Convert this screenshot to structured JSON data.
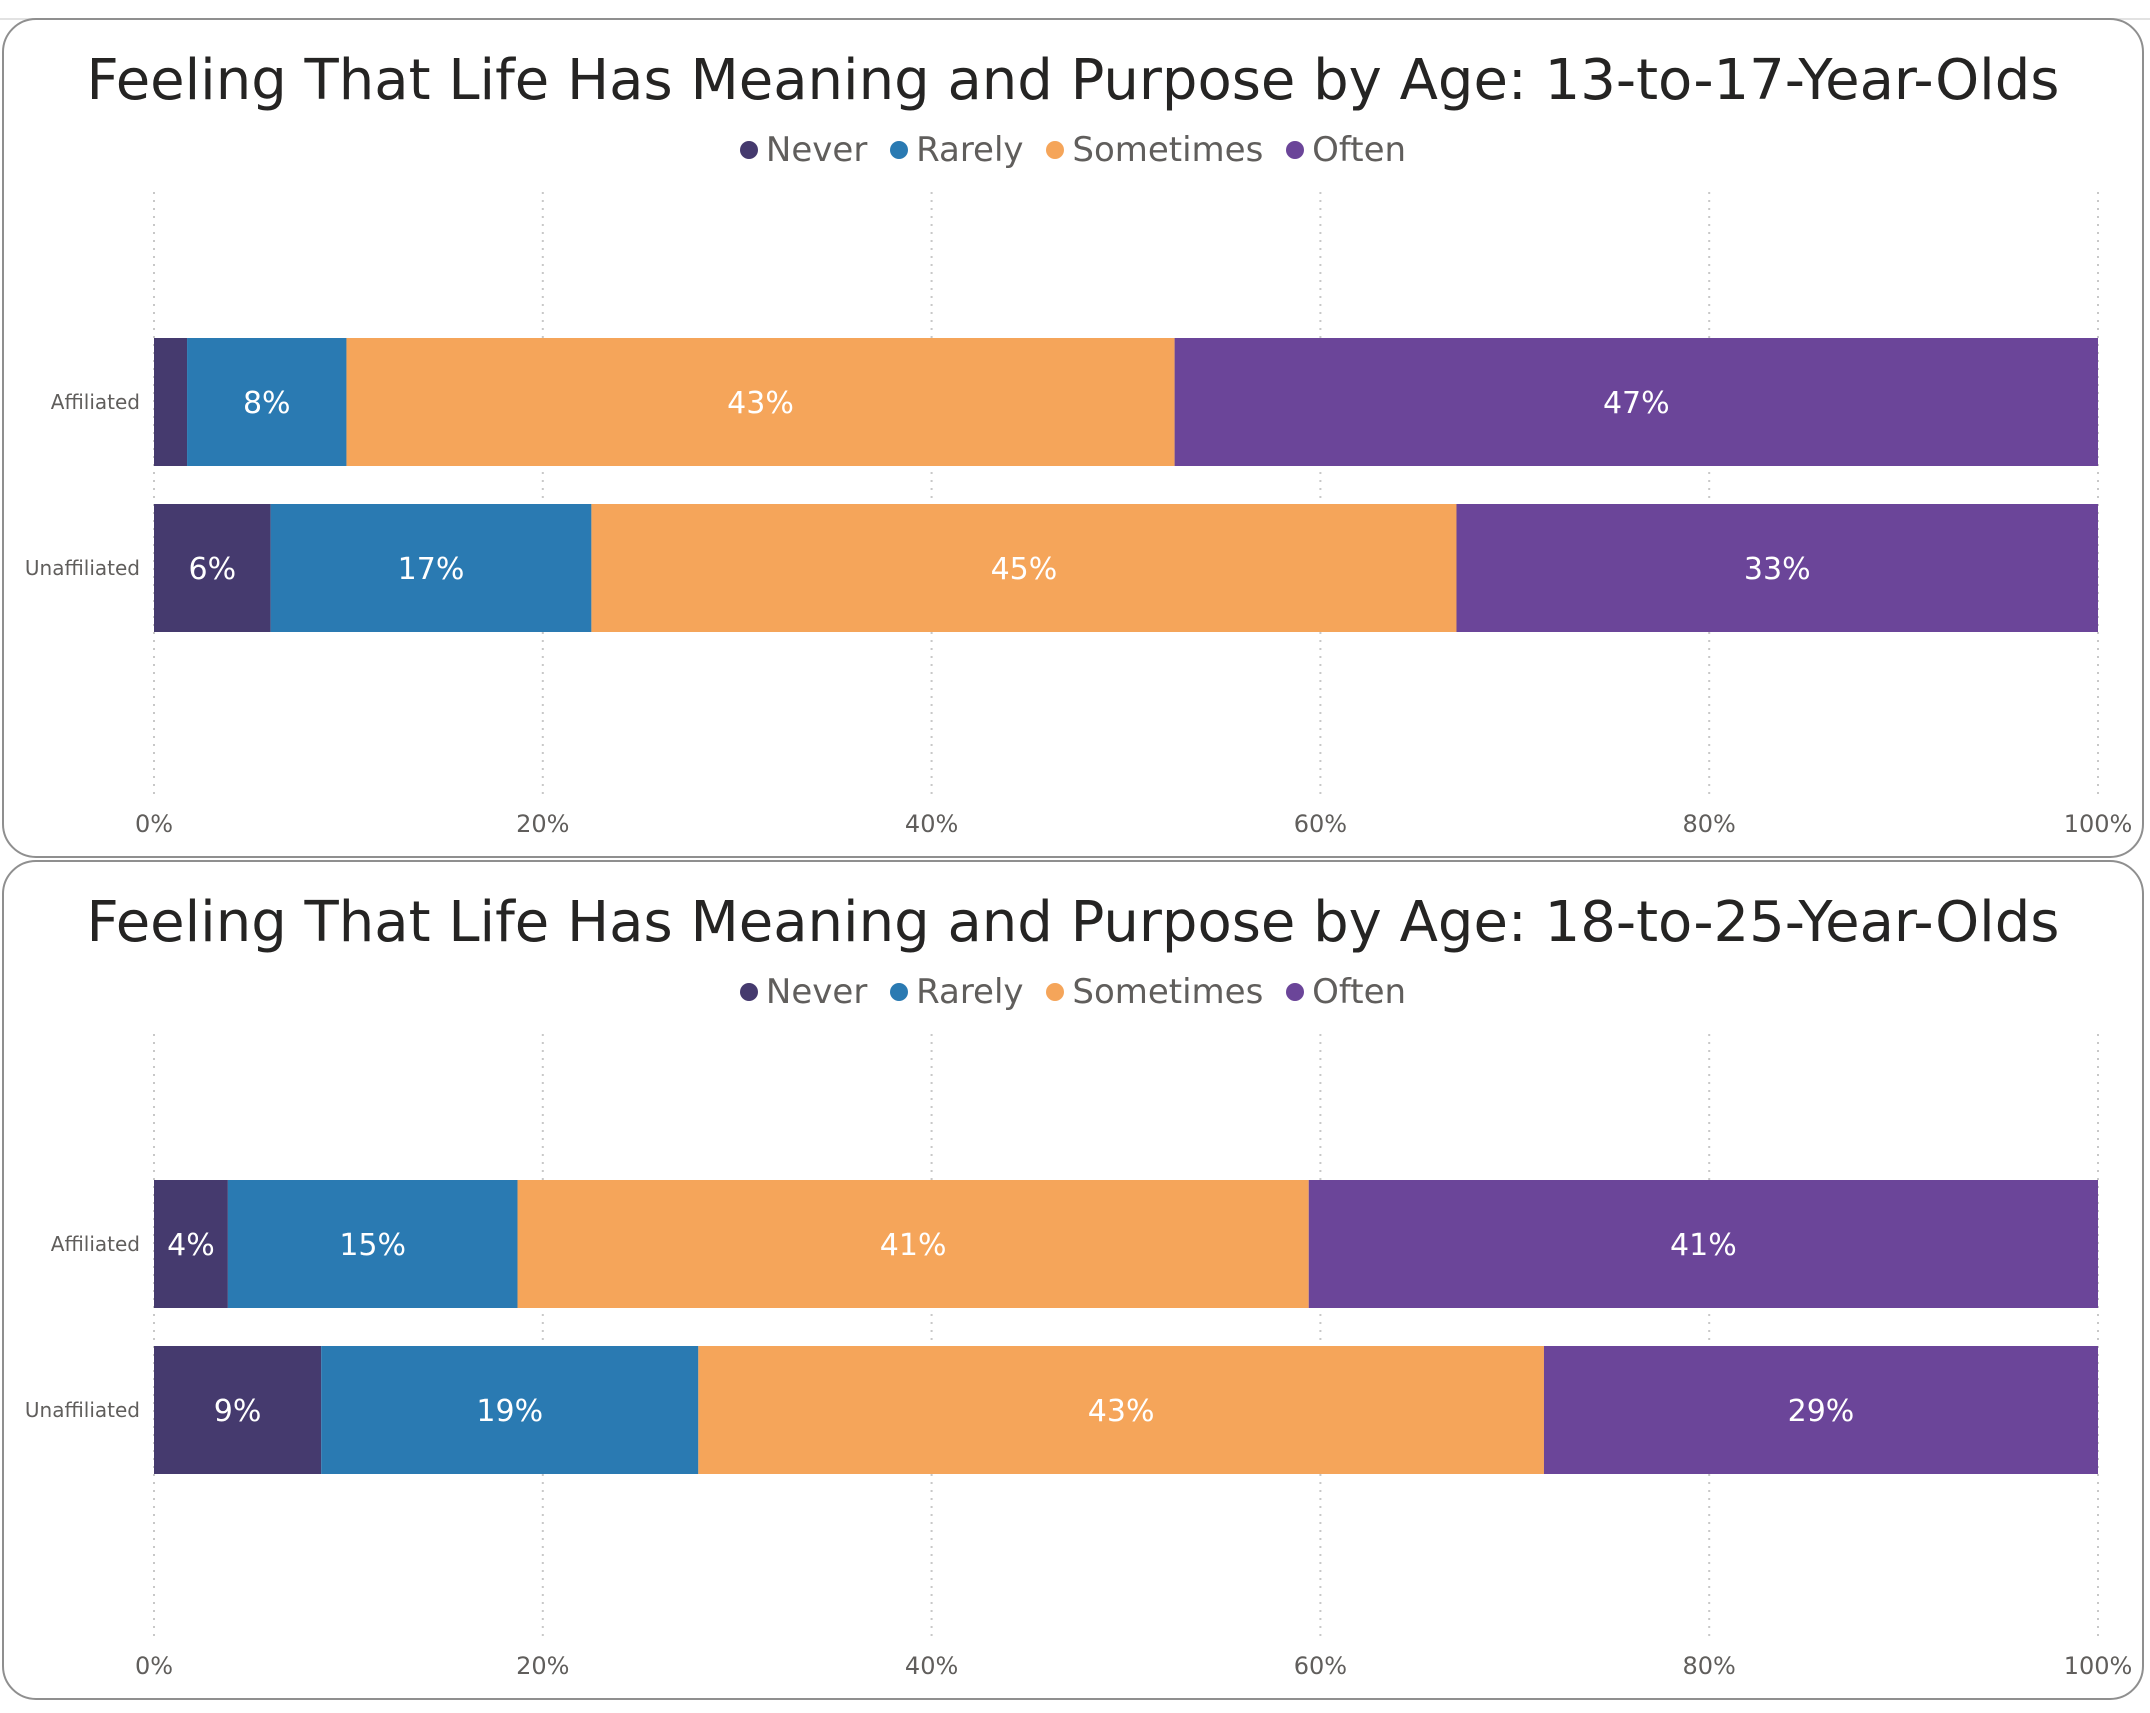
{
  "chart_data": [
    {
      "type": "bar",
      "orientation": "horizontal",
      "stacked": "100%",
      "title": "Feeling That Life Has Meaning and Purpose by Age: 13-to-17-Year-Olds",
      "categories": [
        "Affiliated",
        "Unaffiliated"
      ],
      "legend": [
        "Never",
        "Rarely",
        "Sometimes",
        "Often"
      ],
      "series": [
        {
          "name": "Never",
          "color": "#453a6e",
          "values": [
            1.7,
            6
          ],
          "labels": [
            "",
            "6%"
          ]
        },
        {
          "name": "Rarely",
          "color": "#2a7ab2",
          "values": [
            8.2,
            16.5
          ],
          "labels": [
            "8%",
            "17%"
          ]
        },
        {
          "name": "Sometimes",
          "color": "#f5a55a",
          "values": [
            42.6,
            44.5
          ],
          "labels": [
            "43%",
            "45%"
          ]
        },
        {
          "name": "Often",
          "color": "#6b4599",
          "values": [
            47.5,
            33
          ],
          "labels": [
            "47%",
            "33%"
          ]
        }
      ],
      "xlim": [
        0,
        100
      ],
      "xticks": [
        "0%",
        "20%",
        "40%",
        "60%",
        "80%",
        "100%"
      ],
      "grid": true,
      "legend_position": "top-center"
    },
    {
      "type": "bar",
      "orientation": "horizontal",
      "stacked": "100%",
      "title": "Feeling That Life Has Meaning and Purpose by Age: 18-to-25-Year-Olds",
      "categories": [
        "Affiliated",
        "Unaffiliated"
      ],
      "legend": [
        "Never",
        "Rarely",
        "Sometimes",
        "Often"
      ],
      "series": [
        {
          "name": "Never",
          "color": "#453a6e",
          "values": [
            3.8,
            8.6
          ],
          "labels": [
            "4%",
            "9%"
          ]
        },
        {
          "name": "Rarely",
          "color": "#2a7ab2",
          "values": [
            14.9,
            19.4
          ],
          "labels": [
            "15%",
            "19%"
          ]
        },
        {
          "name": "Sometimes",
          "color": "#f5a55a",
          "values": [
            40.7,
            43.5
          ],
          "labels": [
            "41%",
            "43%"
          ]
        },
        {
          "name": "Often",
          "color": "#6b4599",
          "values": [
            40.6,
            28.5
          ],
          "labels": [
            "41%",
            "29%"
          ]
        }
      ],
      "xlim": [
        0,
        100
      ],
      "xticks": [
        "0%",
        "20%",
        "40%",
        "60%",
        "80%",
        "100%"
      ],
      "grid": true,
      "legend_position": "top-center"
    }
  ]
}
